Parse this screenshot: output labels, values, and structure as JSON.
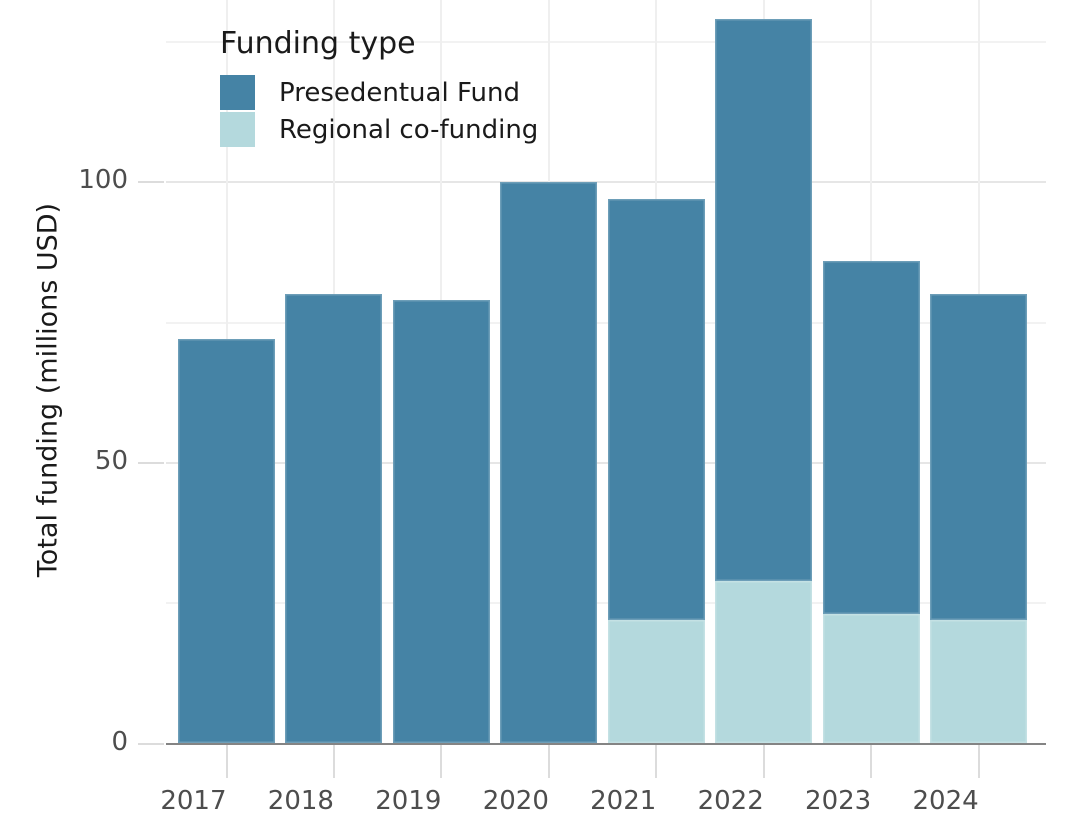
{
  "chart_data": {
    "type": "bar",
    "stacked": true,
    "orientation": "vertical",
    "title": "",
    "xlabel": "",
    "ylabel": "Total funding (millions USD)",
    "categories": [
      "2017",
      "2018",
      "2019",
      "2020",
      "2021",
      "2022",
      "2023",
      "2024"
    ],
    "series": [
      {
        "name": "Regional co-funding",
        "color": "#b4d9dd",
        "values": [
          0,
          0,
          0,
          0,
          22,
          29,
          23,
          22
        ]
      },
      {
        "name": "Presedentual Fund",
        "color": "#4583a5",
        "values": [
          72,
          80,
          79,
          100,
          75,
          100,
          63,
          58
        ]
      }
    ],
    "stack_totals": [
      72,
      80,
      79,
      100,
      97,
      129,
      86,
      80
    ],
    "y_ticks": [
      0,
      50,
      100
    ],
    "y_minor_gridlines": [
      25,
      75,
      125
    ],
    "ylim": [
      0,
      132.5
    ],
    "grid": "on",
    "legend": {
      "title": "Funding type",
      "position": "inside-top-left",
      "items": [
        {
          "label": "Presedentual Fund",
          "color": "#4583a5"
        },
        {
          "label": "Regional co-funding",
          "color": "#b4d9dd"
        }
      ]
    },
    "colors": {
      "background": "#ffffff",
      "axis_line": "#848484",
      "tick_mark": "#dcdcdc",
      "tick_label": "#4d4d4d",
      "text": "#1a1a1a",
      "grid_major": "#e6e6e6",
      "grid_minor": "#f2f2f2"
    }
  }
}
